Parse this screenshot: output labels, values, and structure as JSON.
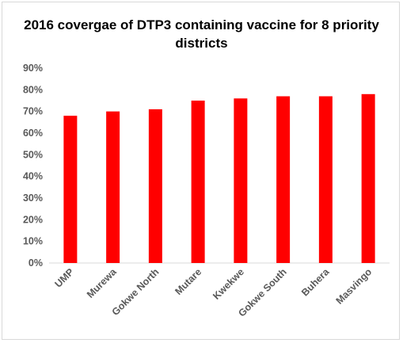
{
  "chart_data": {
    "type": "bar",
    "title": "2016 covergae of DTP3 containing vaccine for 8 priority districts",
    "categories": [
      "UMP",
      "Murewa",
      "Gokwe North",
      "Mutare",
      "Kwekwe",
      "Gokwe South",
      "Buhera",
      "Masvingo"
    ],
    "values": [
      68,
      70,
      71,
      75,
      76,
      77,
      77,
      78
    ],
    "value_unit": "%",
    "ylim": [
      0,
      90
    ],
    "yticks": [
      "0%",
      "10%",
      "20%",
      "30%",
      "40%",
      "50%",
      "60%",
      "70%",
      "80%",
      "90%"
    ],
    "xlabel": "",
    "ylabel": "",
    "grid": false,
    "legend": "none",
    "bar_color": "#ff0000"
  }
}
